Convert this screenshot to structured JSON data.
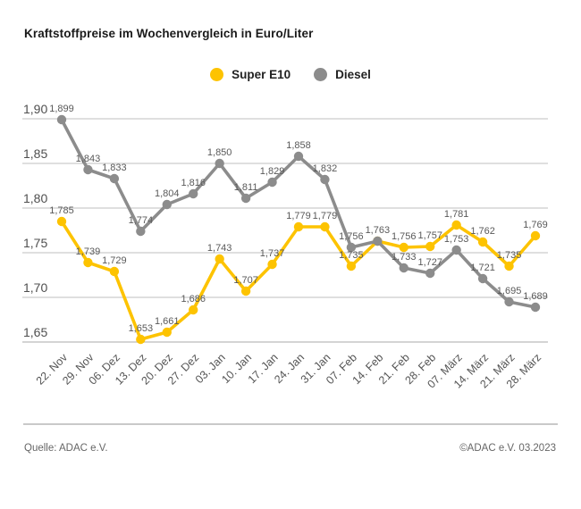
{
  "title": "Kraftstoffpreise im Wochenvergleich in Euro/Liter",
  "legend": [
    {
      "label": "Super E10",
      "color": "#fdc300"
    },
    {
      "label": "Diesel",
      "color": "#8c8c8c"
    }
  ],
  "footer": {
    "source": "Quelle: ADAC e.V.",
    "copyright": "©ADAC e.V. 03.2023"
  },
  "chart_data": {
    "type": "line",
    "title": "Kraftstoffpreise im Wochenvergleich in Euro/Liter",
    "categories": [
      "22. Nov",
      "29. Nov",
      "06. Dez",
      "13. Dez",
      "20. Dez",
      "27. Dez",
      "03. Jan",
      "10. Jan",
      "17. Jan",
      "24. Jan",
      "31. Jan",
      "07. Feb",
      "14. Feb",
      "21. Feb",
      "28. Feb",
      "07. März",
      "14. März",
      "21. März",
      "28. März"
    ],
    "series": [
      {
        "name": "Super E10",
        "color": "#fdc300",
        "values": [
          1.785,
          1.739,
          1.729,
          1.653,
          1.661,
          1.686,
          1.743,
          1.707,
          1.737,
          1.779,
          1.779,
          1.735,
          1.763,
          1.756,
          1.757,
          1.781,
          1.762,
          1.735,
          1.769
        ],
        "hidden_labels": [
          12
        ]
      },
      {
        "name": "Diesel",
        "color": "#8c8c8c",
        "values": [
          1.899,
          1.843,
          1.833,
          1.774,
          1.804,
          1.816,
          1.85,
          1.811,
          1.829,
          1.858,
          1.832,
          1.756,
          1.763,
          1.733,
          1.727,
          1.753,
          1.721,
          1.695,
          1.689
        ],
        "hidden_labels": []
      }
    ],
    "y_ticks": [
      {
        "v": 1.9,
        "label": "1,90"
      },
      {
        "v": 1.85,
        "label": "1,85"
      },
      {
        "v": 1.8,
        "label": "1,80"
      },
      {
        "v": 1.75,
        "label": "1,75"
      },
      {
        "v": 1.7,
        "label": "1,70"
      },
      {
        "v": 1.65,
        "label": "1,65"
      }
    ],
    "ylim": [
      1.65,
      1.9
    ],
    "grid": true,
    "legend_position": "top",
    "decimal_separator": ",",
    "xlabel": "",
    "ylabel": "Euro/Liter"
  }
}
